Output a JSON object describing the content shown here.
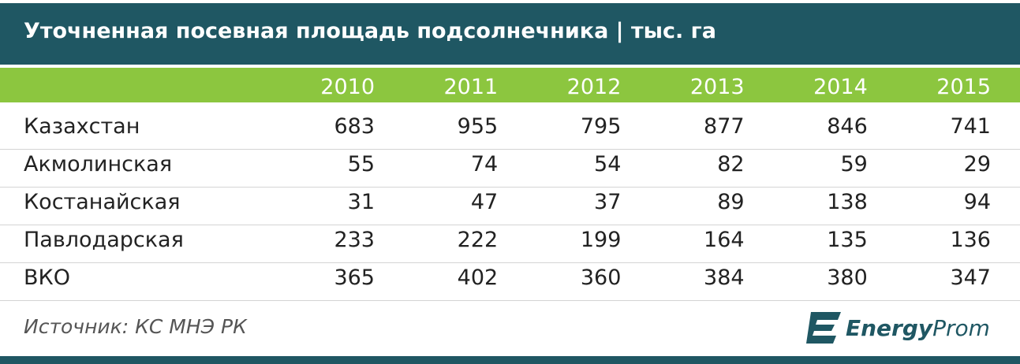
{
  "header": {
    "title": "Уточненная посевная площадь подсолнечника | тыс. га"
  },
  "table": {
    "columns": [
      "2010",
      "2011",
      "2012",
      "2013",
      "2014",
      "2015"
    ],
    "rows": [
      [
        "Казахстан",
        "683",
        "955",
        "795",
        "877",
        "846",
        "741"
      ],
      [
        "Акмолинская",
        "55",
        "74",
        "54",
        "82",
        "59",
        "29"
      ],
      [
        "Костанайская",
        "31",
        "47",
        "37",
        "89",
        "138",
        "94"
      ],
      [
        "Павлодарская",
        "233",
        "222",
        "199",
        "164",
        "135",
        "136"
      ],
      [
        "ВКО",
        "365",
        "402",
        "360",
        "384",
        "380",
        "347"
      ]
    ]
  },
  "footer": {
    "source": "Источник: КС МНЭ РК",
    "logo_bold": "Energy",
    "logo_light": "Prom"
  }
}
